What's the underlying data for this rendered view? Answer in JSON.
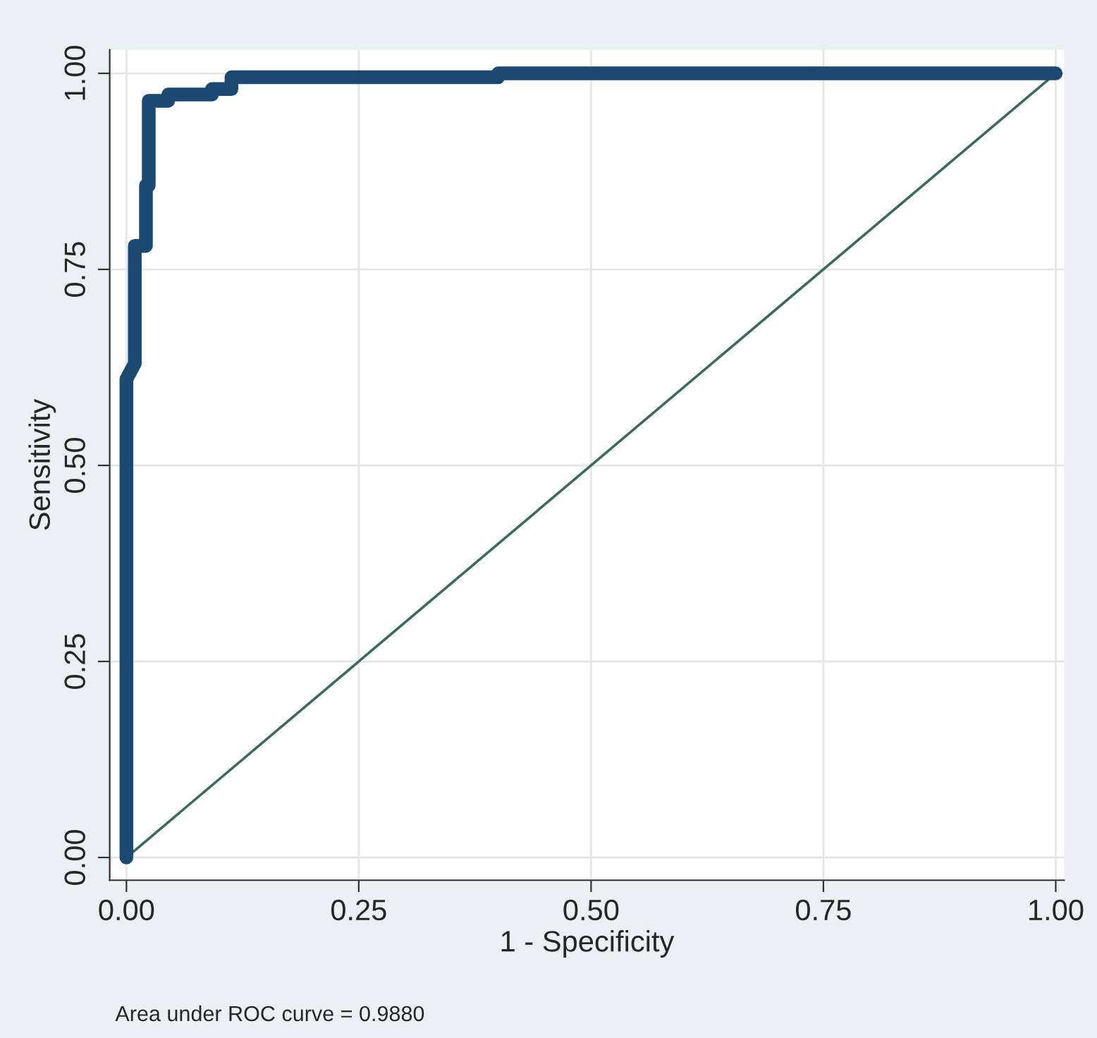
{
  "chart_data": {
    "type": "line",
    "xlabel": "1 - Specificity",
    "ylabel": "Sensitivity",
    "xlim": [
      -0.018,
      1.009
    ],
    "ylim": [
      -0.029,
      1.03
    ],
    "xticks": [
      {
        "value": 0,
        "label": "0.00"
      },
      {
        "value": 0.25,
        "label": "0.25"
      },
      {
        "value": 0.5,
        "label": "0.50"
      },
      {
        "value": 0.75,
        "label": "0.75"
      },
      {
        "value": 1,
        "label": "1.00"
      }
    ],
    "yticks": [
      {
        "value": 0,
        "label": "0.00"
      },
      {
        "value": 0.25,
        "label": "0.25"
      },
      {
        "value": 0.5,
        "label": "0.50"
      },
      {
        "value": 0.75,
        "label": "0.75"
      },
      {
        "value": 1,
        "label": "1.00"
      }
    ],
    "grid": true,
    "marker": "none",
    "series": [
      {
        "type": "step",
        "color": "#1a4a72",
        "x": [
          0,
          0,
          0.009,
          0.009,
          0.021,
          0.021,
          0.024,
          0.024,
          0.045,
          0.045,
          0.092,
          0.092,
          0.113,
          0.113,
          0.4,
          0.4,
          1
        ],
        "values": [
          0,
          0.61,
          0.63,
          0.78,
          0.78,
          0.857,
          0.857,
          0.965,
          0.965,
          0.973,
          0.973,
          0.98,
          0.98,
          0.995,
          0.995,
          1,
          1
        ]
      },
      {
        "color": "#3a6a5a",
        "x": [
          0,
          1
        ],
        "values": [
          0,
          1
        ]
      }
    ],
    "annotations": [
      "Area under ROC curve = 0.9880"
    ]
  }
}
